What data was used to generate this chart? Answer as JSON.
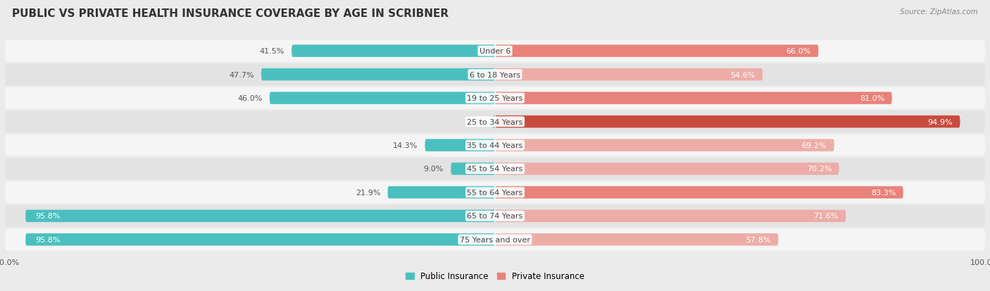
{
  "title": "PUBLIC VS PRIVATE HEALTH INSURANCE COVERAGE BY AGE IN SCRIBNER",
  "source": "Source: ZipAtlas.com",
  "categories": [
    "Under 6",
    "6 to 18 Years",
    "19 to 25 Years",
    "25 to 34 Years",
    "35 to 44 Years",
    "45 to 54 Years",
    "55 to 64 Years",
    "65 to 74 Years",
    "75 Years and over"
  ],
  "public_values": [
    41.5,
    47.7,
    46.0,
    0.0,
    14.3,
    9.0,
    21.9,
    95.8,
    95.8
  ],
  "private_values": [
    66.0,
    54.6,
    81.0,
    94.9,
    69.2,
    70.2,
    83.3,
    71.6,
    57.8
  ],
  "public_color": "#4BBFBF",
  "private_colors": [
    "#E8827A",
    "#EDADA7",
    "#E8827A",
    "#C94B40",
    "#EDADA7",
    "#EDADA7",
    "#E8827A",
    "#EDADA7",
    "#EDADA7"
  ],
  "background_color": "#EBEBEB",
  "row_bg_light": "#F5F5F5",
  "row_bg_dark": "#E3E3E3",
  "title_fontsize": 11,
  "label_fontsize": 8,
  "value_fontsize": 8,
  "legend_fontsize": 8.5,
  "source_fontsize": 7.5
}
